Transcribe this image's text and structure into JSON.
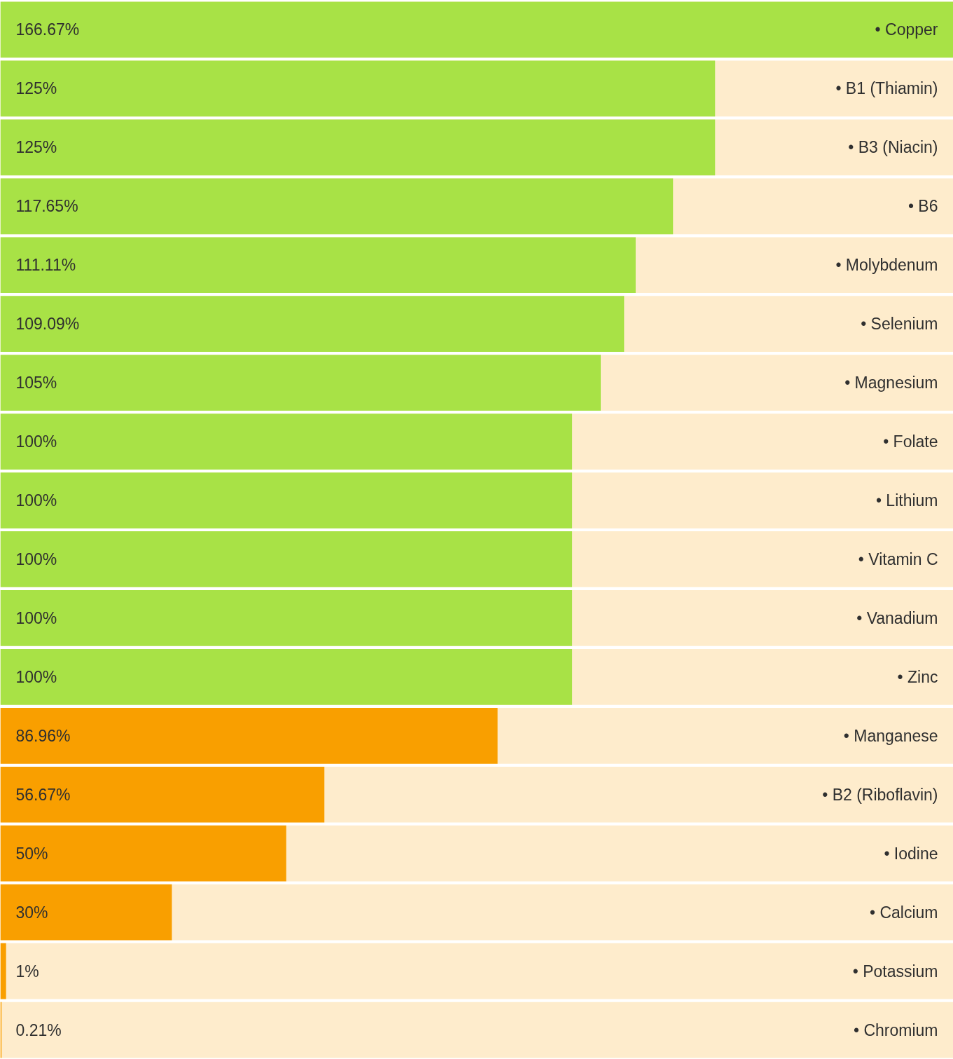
{
  "chart_data": {
    "type": "bar",
    "orientation": "horizontal",
    "categories": [
      "• Copper",
      "• B1 (Thiamin)",
      "• B3 (Niacin)",
      "• B6",
      "• Molybdenum",
      "• Selenium",
      "• Magnesium",
      "• Folate",
      "• Lithium",
      "• Vitamin C",
      "• Vanadium",
      "• Zinc",
      "• Manganese",
      "• B2 (Riboflavin)",
      "• Iodine",
      "• Calcium",
      "• Potassium",
      "• Chromium"
    ],
    "values": [
      166.67,
      125,
      125,
      117.65,
      111.11,
      109.09,
      105,
      100,
      100,
      100,
      100,
      100,
      86.96,
      56.67,
      50,
      30,
      1,
      0.21
    ],
    "value_labels": [
      "166.67%",
      "125%",
      "125%",
      "117.65%",
      "111.11%",
      "109.09%",
      "105%",
      "100%",
      "100%",
      "100%",
      "100%",
      "100%",
      "86.96%",
      "56.67%",
      "50%",
      "30%",
      "1%",
      "0.21%"
    ],
    "colors": [
      "#a8e246",
      "#a8e246",
      "#a8e246",
      "#a8e246",
      "#a8e246",
      "#a8e246",
      "#a8e246",
      "#a8e246",
      "#a8e246",
      "#a8e246",
      "#a8e246",
      "#a8e246",
      "#f99f00",
      "#f99f00",
      "#f99f00",
      "#f99f00",
      "#f99f00",
      "#f99f00"
    ],
    "xlim": [
      0,
      166.67
    ],
    "grid": false,
    "tick_labels": false
  }
}
